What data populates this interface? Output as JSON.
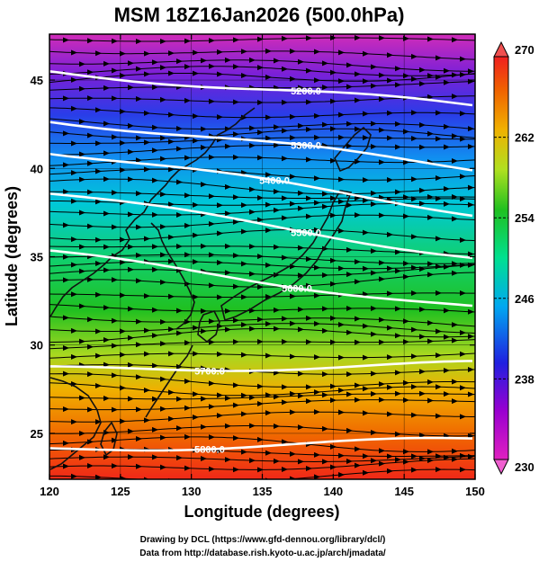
{
  "title": "MSM 18Z16Jan2026 (500.0hPa)",
  "x_axis": {
    "label": "Longitude (degrees)",
    "ticks": [
      "120",
      "125",
      "130",
      "135",
      "140",
      "145",
      "150"
    ],
    "range": [
      120,
      150
    ]
  },
  "y_axis": {
    "label": "Latitude  (degrees)",
    "ticks": [
      "25",
      "30",
      "35",
      "40",
      "45"
    ],
    "range": [
      22.4,
      47.6
    ]
  },
  "colorbar": {
    "ticks": [
      "270",
      "262",
      "254",
      "246",
      "238",
      "230"
    ],
    "range": [
      230,
      270
    ],
    "colors": [
      "#e020c0",
      "#9a00d0",
      "#2020e0",
      "#00b0f0",
      "#00e090",
      "#20c020",
      "#c0e020",
      "#f0b000",
      "#f06000",
      "#f02020"
    ]
  },
  "contours": {
    "variable": "geopotential height",
    "levels": [
      {
        "label": "5200.0",
        "lat_west": 45.5,
        "lat_east": 43.5
      },
      {
        "label": "5300.0",
        "lat_west": 42.8,
        "lat_east": 40.0
      },
      {
        "label": "5400.0",
        "lat_west": 41.0,
        "lat_east": 37.5
      },
      {
        "label": "5500.0",
        "lat_west": 38.6,
        "lat_east": 35.0
      },
      {
        "label": "5600.0",
        "lat_west": 35.2,
        "lat_east": 32.1
      },
      {
        "label": "5700.0",
        "lat_west": 28.6,
        "lat_east": 28.9
      },
      {
        "label": "5800.0",
        "lat_west": 24.1,
        "lat_east": 24.6
      }
    ]
  },
  "streamlines": {
    "direction": "westerly"
  },
  "credits": {
    "line1": "Drawing by DCL (https://www.gfd-dennou.org/library/dcl/)",
    "line2": "Data from http://database.rish.kyoto-u.ac.jp/arch/jmadata/"
  }
}
